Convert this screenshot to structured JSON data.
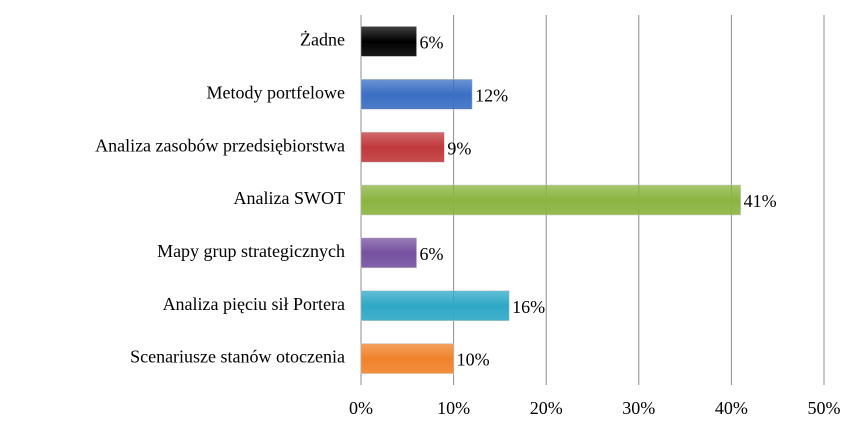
{
  "chart_data": {
    "type": "barh",
    "categories": [
      "Żadne",
      "Metody portfelowe",
      "Analiza zasobów przedsiębiorstwa",
      "Analiza SWOT",
      "Mapy grup strategicznych",
      "Analiza pięciu sił Portera",
      "Scenariusze stanów otoczenia"
    ],
    "values": [
      6,
      12,
      9,
      41,
      6,
      16,
      10
    ],
    "value_labels": [
      "6%",
      "12%",
      "9%",
      "41%",
      "6%",
      "16%",
      "10%"
    ],
    "colors": [
      "#000000",
      "#3a6fc4",
      "#c0393b",
      "#8ab440",
      "#7651a0",
      "#2ea8c6",
      "#f0822a"
    ],
    "xlim": [
      0,
      50
    ],
    "xticks": [
      {
        "value": 0,
        "label": "0%"
      },
      {
        "value": 10,
        "label": "10%"
      },
      {
        "value": 20,
        "label": "20%"
      },
      {
        "value": 30,
        "label": "30%"
      },
      {
        "value": 40,
        "label": "40%"
      },
      {
        "value": 50,
        "label": "50%"
      }
    ],
    "grid": true
  }
}
